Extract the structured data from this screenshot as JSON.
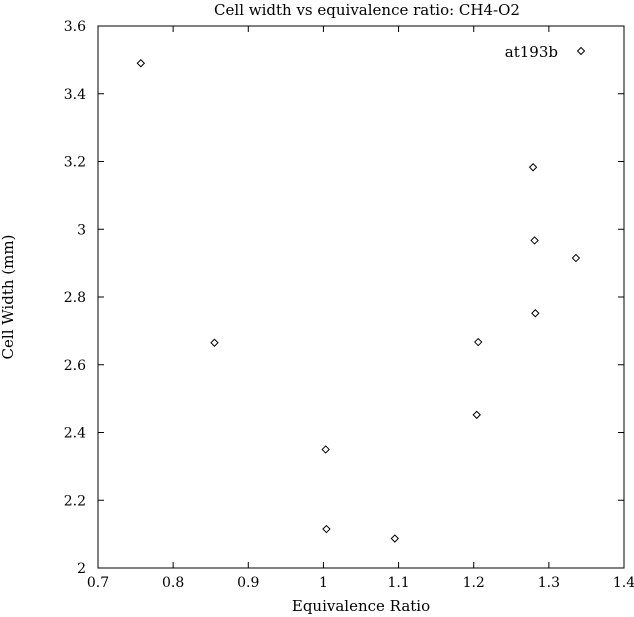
{
  "chart_data": {
    "type": "scatter",
    "title": "Cell width vs equivalence ratio: CH4-O2",
    "xlabel": "Equivalence Ratio",
    "ylabel": "Cell Width (mm)",
    "xlim": [
      0.7,
      1.4
    ],
    "ylim": [
      2,
      3.6
    ],
    "xticks": [
      0.7,
      0.8,
      0.9,
      1,
      1.1,
      1.2,
      1.3,
      1.4
    ],
    "xtick_labels": [
      "0.7",
      "0.8",
      "0.9",
      "1",
      "1.1",
      "1.2",
      "1.3",
      "1.4"
    ],
    "yticks": [
      2,
      2.2,
      2.4,
      2.6,
      2.8,
      3,
      3.2,
      3.4,
      3.6
    ],
    "ytick_labels": [
      "2",
      "2.2",
      "2.4",
      "2.6",
      "2.8",
      "3",
      "3.2",
      "3.4",
      "3.6"
    ],
    "grid": false,
    "legend_position": "top-right",
    "marker": "diamond-open",
    "series": [
      {
        "name": "at193b",
        "x": [
          0.757,
          0.855,
          1.003,
          1.004,
          1.095,
          1.204,
          1.206,
          1.279,
          1.281,
          1.282,
          1.336
        ],
        "y": [
          3.49,
          2.665,
          2.35,
          2.115,
          2.087,
          2.452,
          2.667,
          3.183,
          2.967,
          2.752,
          2.915
        ]
      }
    ]
  }
}
